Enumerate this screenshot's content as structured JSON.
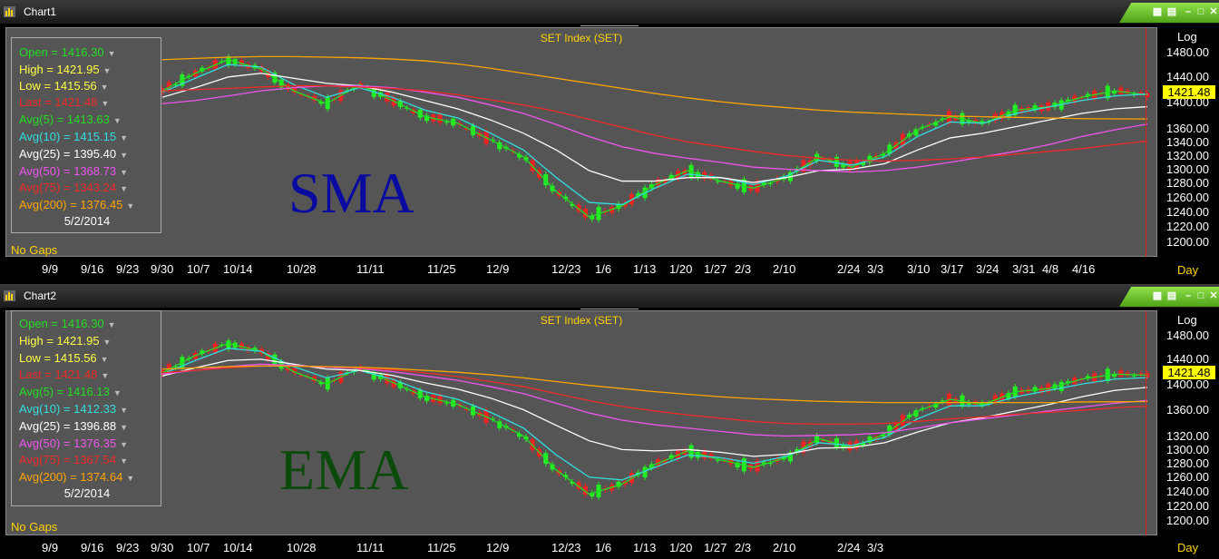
{
  "colors": {
    "open": "#22dd22",
    "high": "#ffff44",
    "low": "#ffff44",
    "last": "#ee2a2a",
    "avg5": "#22dd22",
    "avg10": "#33dddd",
    "avg25": "#ffffff",
    "avg50": "#ee55ee",
    "avg75": "#ee2a2a",
    "avg200": "#ffa500",
    "up": "#22ee22",
    "down": "#ee2222"
  },
  "charts": [
    {
      "window_title": "Chart1",
      "chart_title": "SET Index (SET)",
      "big_label": "SMA",
      "big_label_color": "#0a0aa0",
      "scale_label": "Log",
      "period_label": "Day",
      "no_gaps": "No Gaps",
      "date": "5/2/2014",
      "last_label": "1421.48",
      "legend": {
        "open": "Open = 1416.30",
        "high": "High = 1421.95",
        "low": "Low = 1415.56",
        "last": "Last = 1421.48",
        "avg5": "Avg(5) = 1413.63",
        "avg10": "Avg(10) = 1415.15",
        "avg25": "Avg(25) = 1395.40",
        "avg50": "Avg(50) = 1368.73",
        "avg75": "Avg(75) = 1343.24",
        "avg200": "Avg(200) = 1376.45"
      }
    },
    {
      "window_title": "Chart2",
      "chart_title": "SET Index (SET)",
      "big_label": "EMA",
      "big_label_color": "#0a4a0a",
      "scale_label": "Log",
      "period_label": "Day",
      "no_gaps": "No Gaps",
      "date": "5/2/2014",
      "last_label": "1421.48",
      "legend": {
        "open": "Open = 1416.30",
        "high": "High = 1421.95",
        "low": "Low = 1415.56",
        "last": "Last = 1421.48",
        "avg5": "Avg(5) = 1416.13",
        "avg10": "Avg(10) = 1412.33",
        "avg25": "Avg(25) = 1396.88",
        "avg50": "Avg(50) = 1376.35",
        "avg75": "Avg(75) = 1367.54",
        "avg200": "Avg(200) = 1374.64"
      }
    }
  ],
  "chart_data": [
    {
      "type": "line",
      "title": "SET Index (SET)",
      "y_scale": "log",
      "ylim": [
        1190,
        1510
      ],
      "y_ticks": [
        "1480.00",
        "1440.00",
        "1400.00",
        "1360.00",
        "1340.00",
        "1320.00",
        "1300.00",
        "1280.00",
        "1260.00",
        "1240.00",
        "1220.00",
        "1200.00"
      ],
      "x_ticks": [
        "9/9",
        "9/16",
        "9/23",
        "9/30",
        "10/7",
        "10/14",
        "10/28",
        "11/11",
        "11/25",
        "12/9",
        "12/23",
        "1/6",
        "1/13",
        "1/20",
        "1/27",
        "2/3",
        "2/10",
        "2/24",
        "3/3",
        "3/10",
        "3/17",
        "3/24",
        "3/31",
        "4/8",
        "4/16"
      ],
      "x": [
        "9/30",
        "10/7",
        "10/14",
        "10/21",
        "10/28",
        "11/4",
        "11/11",
        "11/18",
        "11/25",
        "12/2",
        "12/9",
        "12/16",
        "12/23",
        "12/30",
        "1/6",
        "1/13",
        "1/20",
        "1/27",
        "2/3",
        "2/10",
        "2/17",
        "2/24",
        "3/3",
        "3/10",
        "3/17",
        "3/24",
        "3/31",
        "4/8",
        "4/16",
        "4/24",
        "5/2"
      ],
      "series": [
        {
          "name": "Avg(5)",
          "values": [
            1420,
            1448,
            1470,
            1455,
            1420,
            1400,
            1430,
            1405,
            1380,
            1370,
            1345,
            1320,
            1270,
            1235,
            1250,
            1280,
            1300,
            1285,
            1275,
            1290,
            1320,
            1305,
            1325,
            1360,
            1380,
            1370,
            1390,
            1395,
            1410,
            1420,
            1413.63
          ]
        },
        {
          "name": "Avg(10)",
          "values": [
            1418,
            1440,
            1462,
            1458,
            1430,
            1410,
            1425,
            1410,
            1390,
            1378,
            1355,
            1330,
            1290,
            1255,
            1252,
            1275,
            1295,
            1290,
            1280,
            1292,
            1315,
            1308,
            1320,
            1350,
            1372,
            1370,
            1385,
            1395,
            1405,
            1412,
            1415.15
          ]
        },
        {
          "name": "Avg(25)",
          "values": [
            1410,
            1425,
            1442,
            1448,
            1440,
            1432,
            1428,
            1418,
            1405,
            1392,
            1375,
            1355,
            1330,
            1300,
            1285,
            1285,
            1290,
            1290,
            1283,
            1290,
            1300,
            1302,
            1310,
            1330,
            1348,
            1355,
            1365,
            1375,
            1385,
            1392,
            1395.4
          ]
        },
        {
          "name": "Avg(50)",
          "values": [
            1400,
            1405,
            1412,
            1420,
            1425,
            1428,
            1428,
            1425,
            1418,
            1410,
            1398,
            1385,
            1368,
            1350,
            1335,
            1325,
            1318,
            1312,
            1305,
            1302,
            1300,
            1298,
            1300,
            1305,
            1312,
            1320,
            1328,
            1338,
            1350,
            1360,
            1368.73
          ]
        },
        {
          "name": "Avg(75)",
          "values": [
            1420,
            1422,
            1424,
            1426,
            1428,
            1428,
            1426,
            1424,
            1420,
            1414,
            1406,
            1398,
            1388,
            1376,
            1364,
            1352,
            1342,
            1335,
            1328,
            1322,
            1318,
            1315,
            1314,
            1315,
            1317,
            1320,
            1324,
            1328,
            1332,
            1338,
            1343.24
          ]
        },
        {
          "name": "Avg(200)",
          "values": [
            1470,
            1472,
            1474,
            1475,
            1475,
            1474,
            1473,
            1471,
            1468,
            1463,
            1456,
            1448,
            1440,
            1432,
            1424,
            1416,
            1409,
            1403,
            1398,
            1394,
            1390,
            1387,
            1385,
            1383,
            1381,
            1380,
            1379,
            1378,
            1377,
            1376.7,
            1376.45
          ]
        }
      ]
    },
    {
      "type": "line",
      "title": "SET Index (SET)",
      "y_scale": "log",
      "ylim": [
        1190,
        1510
      ],
      "y_ticks": [
        "1480.00",
        "1440.00",
        "1400.00",
        "1360.00",
        "1320.00",
        "1300.00",
        "1280.00",
        "1260.00",
        "1240.00",
        "1220.00",
        "1200.00"
      ],
      "x_ticks": [
        "9/9",
        "9/16",
        "9/23",
        "9/30",
        "10/7",
        "10/14",
        "10/28",
        "11/11",
        "11/25",
        "12/9",
        "12/23",
        "1/6",
        "1/13",
        "1/20",
        "1/27",
        "2/3",
        "2/10",
        "2/24",
        "3/3"
      ],
      "x": [
        "9/30",
        "10/7",
        "10/14",
        "10/21",
        "10/28",
        "11/4",
        "11/11",
        "11/18",
        "11/25",
        "12/2",
        "12/9",
        "12/16",
        "12/23",
        "12/30",
        "1/6",
        "1/13",
        "1/20",
        "1/27",
        "2/3",
        "2/10",
        "2/17",
        "2/24",
        "3/3",
        "3/10",
        "3/17",
        "3/24",
        "3/31",
        "4/8",
        "4/16",
        "4/24",
        "5/2"
      ],
      "series": [
        {
          "name": "Avg(5)",
          "values": [
            1420,
            1448,
            1468,
            1455,
            1422,
            1402,
            1428,
            1405,
            1382,
            1370,
            1348,
            1322,
            1272,
            1238,
            1252,
            1280,
            1300,
            1287,
            1276,
            1290,
            1318,
            1305,
            1325,
            1360,
            1378,
            1370,
            1390,
            1395,
            1410,
            1418,
            1416.13
          ]
        },
        {
          "name": "Avg(10)",
          "values": [
            1418,
            1440,
            1460,
            1455,
            1430,
            1412,
            1424,
            1410,
            1390,
            1378,
            1358,
            1334,
            1294,
            1262,
            1258,
            1276,
            1294,
            1290,
            1282,
            1292,
            1312,
            1308,
            1320,
            1348,
            1368,
            1368,
            1382,
            1392,
            1402,
            1410,
            1412.33
          ]
        },
        {
          "name": "Avg(25)",
          "values": [
            1415,
            1428,
            1440,
            1442,
            1434,
            1426,
            1424,
            1416,
            1404,
            1394,
            1380,
            1362,
            1338,
            1315,
            1302,
            1300,
            1302,
            1298,
            1292,
            1295,
            1304,
            1305,
            1312,
            1328,
            1342,
            1350,
            1360,
            1370,
            1382,
            1392,
            1396.88
          ]
        },
        {
          "name": "Avg(50)",
          "values": [
            1418,
            1424,
            1430,
            1434,
            1432,
            1429,
            1427,
            1422,
            1415,
            1408,
            1398,
            1387,
            1372,
            1357,
            1346,
            1339,
            1334,
            1329,
            1324,
            1322,
            1323,
            1324,
            1327,
            1334,
            1342,
            1348,
            1354,
            1360,
            1366,
            1372,
            1376.35
          ]
        },
        {
          "name": "Avg(75)",
          "values": [
            1420,
            1424,
            1428,
            1431,
            1431,
            1430,
            1428,
            1425,
            1420,
            1414,
            1406,
            1398,
            1387,
            1376,
            1367,
            1360,
            1354,
            1349,
            1344,
            1341,
            1340,
            1340,
            1341,
            1344,
            1348,
            1351,
            1355,
            1358,
            1361,
            1365,
            1367.54
          ]
        },
        {
          "name": "Avg(200)",
          "values": [
            1426,
            1428,
            1430,
            1431,
            1431,
            1430,
            1429,
            1427,
            1424,
            1421,
            1417,
            1412,
            1406,
            1400,
            1395,
            1390,
            1386,
            1382,
            1379,
            1377,
            1375,
            1374,
            1373,
            1373,
            1373,
            1373,
            1373,
            1373,
            1374,
            1374.3,
            1374.64
          ]
        }
      ]
    }
  ]
}
